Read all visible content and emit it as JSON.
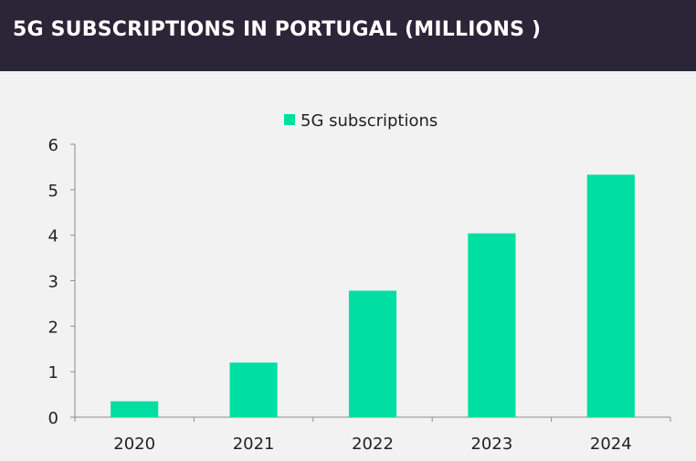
{
  "header": {
    "title": "5G SUBSCRIPTIONS IN PORTUGAL (MILLIONS )"
  },
  "colors": {
    "header_bg": "#2b2538",
    "bar": "#00dfa2",
    "background": "#f2f2f2"
  },
  "chart_data": {
    "type": "bar",
    "title": "5G SUBSCRIPTIONS IN PORTUGAL (MILLIONS )",
    "categories": [
      "2020",
      "2021",
      "2022",
      "2023",
      "2024"
    ],
    "series": [
      {
        "name": "5G subscriptions",
        "values": [
          0.35,
          1.2,
          2.78,
          4.04,
          5.33
        ]
      }
    ],
    "ylim": [
      0,
      6
    ],
    "yticks": [
      0,
      1,
      2,
      3,
      4,
      5,
      6
    ],
    "legend": "top-center",
    "grid": false
  }
}
